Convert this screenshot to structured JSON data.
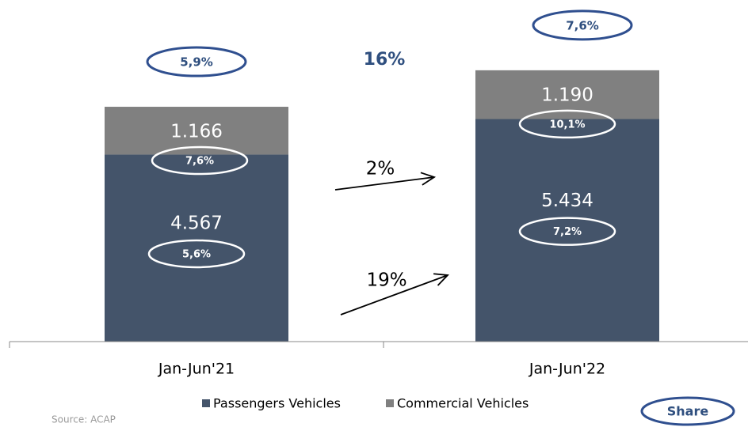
{
  "chart_data": {
    "type": "stacked_bar",
    "categories": [
      "Jan-Jun'21",
      "Jan-Jun'22"
    ],
    "series": [
      {
        "name": "Passengers Vehicles",
        "color": "#44546a",
        "values": [
          4567,
          5434
        ],
        "value_labels": [
          "4.567",
          "5.434"
        ],
        "share_values": [
          5.6,
          7.2
        ],
        "share_labels": [
          "5,6%",
          "7,2%"
        ],
        "growth": 19,
        "growth_label": "19%"
      },
      {
        "name": "Commercial Vehicles",
        "color": "#808080",
        "values": [
          1166,
          1190
        ],
        "value_labels": [
          "1.166",
          "1.190"
        ],
        "share_values": [
          7.6,
          10.1
        ],
        "share_labels": [
          "7,6%",
          "10,1%"
        ],
        "growth": 2,
        "growth_label": "2%"
      }
    ],
    "total_share": {
      "values": [
        5.9,
        7.6
      ],
      "value_labels": [
        "5,9%",
        "7,6%"
      ]
    },
    "total_growth": {
      "value": 16,
      "label": "16%"
    },
    "share_legend": "Share",
    "source": "Source: ACAP"
  }
}
